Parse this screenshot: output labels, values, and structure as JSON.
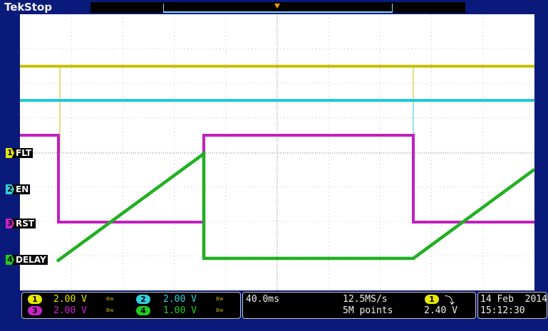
{
  "header": {
    "brand": "Tek",
    "status": "Stop"
  },
  "channels": [
    {
      "num": "1",
      "label": "FLT",
      "scale": "2.00 V",
      "color": "#e8e800"
    },
    {
      "num": "2",
      "label": "EN",
      "scale": "2.00 V",
      "color": "#30d0e0"
    },
    {
      "num": "3",
      "label": "RST",
      "scale": "2.00 V",
      "color": "#cc22cc"
    },
    {
      "num": "4",
      "label": "DELAY",
      "scale": "1.00 V",
      "color": "#22cc22"
    }
  ],
  "bandwidth_icon": "Bᴡ",
  "timebase": {
    "horizontal": "40.0ms",
    "sample_rate": "12.5MS/s",
    "record_length": "5M points"
  },
  "trigger": {
    "source": "1",
    "slope_icon": "falling-edge",
    "slope_glyph": "⤵",
    "level": "2.40 V"
  },
  "datetime": {
    "date": "14 Feb  2014",
    "time": "15:12:30"
  },
  "colors": {
    "background": "#0a1a7a",
    "graticule": "#a0a0a0",
    "trigger_marker": "#ff9900"
  }
}
